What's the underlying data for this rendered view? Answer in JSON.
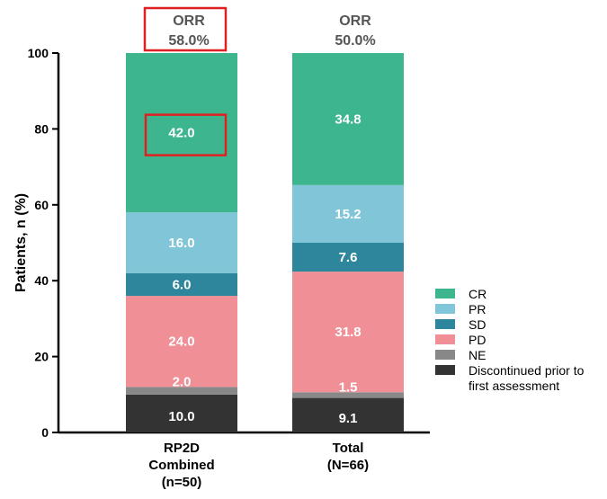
{
  "chart_data": {
    "type": "bar",
    "stacked": true,
    "ylabel": "Patients, n (%)",
    "xlabel": "",
    "ylim": [
      0,
      100
    ],
    "yticks": [
      0,
      20,
      40,
      60,
      80,
      100
    ],
    "categories": [
      [
        "RP2D",
        "Combined",
        "(n=50)"
      ],
      [
        "Total",
        "(N=66)"
      ]
    ],
    "orr": [
      {
        "label": "ORR",
        "value": "58.0%",
        "highlighted": true
      },
      {
        "label": "ORR",
        "value": "50.0%",
        "highlighted": false
      }
    ],
    "series": [
      {
        "name": "Discontinued prior to first assessment",
        "legend_lines": [
          "Discontinued prior to",
          "first assessment"
        ],
        "color": "#333333",
        "values": [
          10.0,
          9.1
        ],
        "labels": [
          "10.0",
          "9.1"
        ]
      },
      {
        "name": "NE",
        "legend_lines": [
          "NE"
        ],
        "color": "#888888",
        "values": [
          2.0,
          1.5
        ],
        "labels": [
          "2.0",
          "1.5"
        ]
      },
      {
        "name": "PD",
        "legend_lines": [
          "PD"
        ],
        "color": "#F09096",
        "values": [
          24.0,
          31.8
        ],
        "labels": [
          "24.0",
          "31.8"
        ]
      },
      {
        "name": "SD",
        "legend_lines": [
          "SD"
        ],
        "color": "#2E869C",
        "values": [
          6.0,
          7.6
        ],
        "labels": [
          "6.0",
          "7.6"
        ]
      },
      {
        "name": "PR",
        "legend_lines": [
          "PR"
        ],
        "color": "#80C5D8",
        "values": [
          16.0,
          15.2
        ],
        "labels": [
          "16.0",
          "15.2"
        ]
      },
      {
        "name": "CR",
        "legend_lines": [
          "CR"
        ],
        "color": "#3DB58F",
        "values": [
          42.0,
          34.8
        ],
        "labels": [
          "42.0",
          "34.8"
        ]
      }
    ],
    "highlighted_segments": [
      {
        "category": 0,
        "series": "CR"
      }
    ],
    "highlight_color": "#E02020",
    "legend_position": "right"
  }
}
